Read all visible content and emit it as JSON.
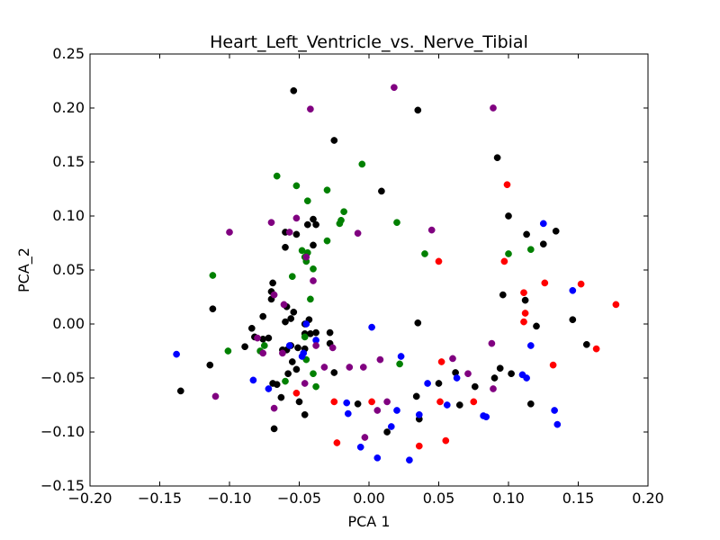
{
  "chart_data": {
    "type": "scatter",
    "title": "Heart_Left_Ventricle_vs._Nerve_Tibial",
    "xlabel": "PCA 1",
    "ylabel": "PCA_2",
    "xlim": [
      -0.2,
      0.2
    ],
    "ylim": [
      -0.15,
      0.25
    ],
    "grid": false,
    "legend": "none",
    "x_ticks": [
      -0.2,
      -0.15,
      -0.1,
      -0.05,
      0.0,
      0.05,
      0.1,
      0.15,
      0.2
    ],
    "x_tick_labels": [
      "−0.20",
      "−0.15",
      "−0.10",
      "−0.05",
      "0.00",
      "0.05",
      "0.10",
      "0.15",
      "0.20"
    ],
    "y_ticks": [
      -0.15,
      -0.1,
      -0.05,
      0.0,
      0.05,
      0.1,
      0.15,
      0.2,
      0.25
    ],
    "y_tick_labels": [
      "−0.15",
      "−0.10",
      "−0.05",
      "0.00",
      "0.05",
      "0.10",
      "0.15",
      "0.20",
      "0.25"
    ],
    "series": [
      {
        "color": "#000000",
        "points": [
          [
            -0.054,
            0.216
          ],
          [
            -0.025,
            0.17
          ],
          [
            0.035,
            0.198
          ],
          [
            0.009,
            0.123
          ],
          [
            0.092,
            0.154
          ],
          [
            0.1,
            0.1
          ],
          [
            0.113,
            0.083
          ],
          [
            0.134,
            0.086
          ],
          [
            0.125,
            0.074
          ],
          [
            -0.06,
            0.085
          ],
          [
            -0.052,
            0.083
          ],
          [
            -0.044,
            0.092
          ],
          [
            -0.04,
            0.097
          ],
          [
            -0.038,
            0.092
          ],
          [
            -0.04,
            0.073
          ],
          [
            -0.06,
            0.071
          ],
          [
            -0.069,
            0.038
          ],
          [
            -0.07,
            0.03
          ],
          [
            -0.07,
            0.023
          ],
          [
            -0.059,
            0.016
          ],
          [
            -0.06,
            0.002
          ],
          [
            -0.056,
            0.005
          ],
          [
            -0.054,
            0.011
          ],
          [
            -0.046,
            0.0
          ],
          [
            -0.043,
            0.004
          ],
          [
            -0.076,
            0.007
          ],
          [
            -0.084,
            -0.004
          ],
          [
            -0.082,
            -0.012
          ],
          [
            -0.076,
            -0.014
          ],
          [
            -0.072,
            -0.013
          ],
          [
            -0.089,
            -0.021
          ],
          [
            -0.062,
            -0.024
          ],
          [
            -0.059,
            -0.024
          ],
          [
            -0.056,
            -0.02
          ],
          [
            -0.051,
            -0.022
          ],
          [
            -0.046,
            -0.009
          ],
          [
            -0.042,
            -0.009
          ],
          [
            -0.038,
            -0.008
          ],
          [
            -0.046,
            -0.023
          ],
          [
            -0.055,
            -0.035
          ],
          [
            -0.052,
            -0.042
          ],
          [
            -0.058,
            -0.046
          ],
          [
            -0.069,
            -0.055
          ],
          [
            -0.066,
            -0.056
          ],
          [
            -0.063,
            -0.068
          ],
          [
            -0.05,
            -0.072
          ],
          [
            -0.046,
            -0.084
          ],
          [
            -0.068,
            -0.097
          ],
          [
            -0.135,
            -0.062
          ],
          [
            -0.114,
            -0.038
          ],
          [
            -0.112,
            0.014
          ],
          [
            -0.028,
            -0.008
          ],
          [
            -0.028,
            -0.018
          ],
          [
            -0.025,
            -0.045
          ],
          [
            -0.008,
            -0.074
          ],
          [
            0.013,
            -0.1
          ],
          [
            0.034,
            -0.067
          ],
          [
            0.036,
            -0.088
          ],
          [
            0.035,
            0.001
          ],
          [
            0.05,
            -0.055
          ],
          [
            0.062,
            -0.045
          ],
          [
            0.065,
            -0.075
          ],
          [
            0.076,
            -0.058
          ],
          [
            0.09,
            -0.05
          ],
          [
            0.094,
            -0.041
          ],
          [
            0.102,
            -0.046
          ],
          [
            0.096,
            0.027
          ],
          [
            0.112,
            0.022
          ],
          [
            0.12,
            -0.002
          ],
          [
            0.146,
            0.004
          ],
          [
            0.156,
            -0.019
          ],
          [
            0.116,
            -0.074
          ]
        ]
      },
      {
        "color": "#008000",
        "points": [
          [
            -0.066,
            0.137
          ],
          [
            -0.052,
            0.128
          ],
          [
            -0.03,
            0.124
          ],
          [
            -0.005,
            0.148
          ],
          [
            -0.044,
            0.114
          ],
          [
            -0.018,
            0.104
          ],
          [
            -0.02,
            0.096
          ],
          [
            -0.021,
            0.093
          ],
          [
            0.02,
            0.094
          ],
          [
            -0.048,
            0.068
          ],
          [
            -0.046,
            0.062
          ],
          [
            -0.044,
            0.066
          ],
          [
            -0.045,
            0.058
          ],
          [
            -0.03,
            0.077
          ],
          [
            -0.04,
            0.051
          ],
          [
            -0.055,
            0.044
          ],
          [
            0.04,
            0.065
          ],
          [
            0.1,
            0.065
          ],
          [
            0.116,
            0.069
          ],
          [
            -0.112,
            0.045
          ],
          [
            -0.042,
            0.023
          ],
          [
            -0.101,
            -0.025
          ],
          [
            -0.078,
            -0.025
          ],
          [
            -0.04,
            -0.046
          ],
          [
            -0.06,
            -0.053
          ],
          [
            -0.038,
            -0.058
          ],
          [
            -0.045,
            -0.033
          ],
          [
            0.022,
            -0.037
          ],
          [
            -0.046,
            -0.012
          ],
          [
            -0.075,
            -0.02
          ]
        ]
      },
      {
        "color": "#0000ff",
        "points": [
          [
            -0.138,
            -0.028
          ],
          [
            -0.083,
            -0.052
          ],
          [
            -0.072,
            -0.06
          ],
          [
            -0.057,
            -0.02
          ],
          [
            -0.048,
            -0.03
          ],
          [
            -0.045,
            0.0
          ],
          [
            -0.038,
            -0.015
          ],
          [
            -0.047,
            -0.027
          ],
          [
            -0.016,
            -0.073
          ],
          [
            -0.015,
            -0.083
          ],
          [
            -0.006,
            -0.114
          ],
          [
            0.002,
            -0.003
          ],
          [
            0.006,
            -0.124
          ],
          [
            0.016,
            -0.095
          ],
          [
            0.02,
            -0.08
          ],
          [
            0.023,
            -0.03
          ],
          [
            0.029,
            -0.126
          ],
          [
            0.036,
            -0.084
          ],
          [
            0.042,
            -0.055
          ],
          [
            0.056,
            -0.075
          ],
          [
            0.063,
            -0.05
          ],
          [
            0.082,
            -0.085
          ],
          [
            0.084,
            -0.086
          ],
          [
            0.11,
            -0.047
          ],
          [
            0.113,
            -0.05
          ],
          [
            0.116,
            -0.02
          ],
          [
            0.125,
            0.093
          ],
          [
            0.133,
            -0.08
          ],
          [
            0.135,
            -0.093
          ],
          [
            0.146,
            0.031
          ]
        ]
      },
      {
        "color": "#800080",
        "points": [
          [
            0.018,
            0.219
          ],
          [
            -0.042,
            0.199
          ],
          [
            0.089,
            0.2
          ],
          [
            -0.052,
            0.098
          ],
          [
            -0.057,
            0.085
          ],
          [
            -0.07,
            0.094
          ],
          [
            -0.1,
            0.085
          ],
          [
            -0.008,
            0.084
          ],
          [
            0.045,
            0.087
          ],
          [
            -0.045,
            0.062
          ],
          [
            -0.04,
            0.04
          ],
          [
            -0.061,
            0.018
          ],
          [
            -0.068,
            0.027
          ],
          [
            -0.08,
            -0.013
          ],
          [
            -0.076,
            -0.027
          ],
          [
            -0.038,
            -0.02
          ],
          [
            -0.026,
            -0.022
          ],
          [
            -0.062,
            -0.027
          ],
          [
            -0.032,
            -0.04
          ],
          [
            -0.014,
            -0.04
          ],
          [
            -0.004,
            -0.04
          ],
          [
            0.008,
            -0.033
          ],
          [
            0.06,
            -0.032
          ],
          [
            0.071,
            -0.046
          ],
          [
            0.088,
            -0.018
          ],
          [
            0.089,
            -0.06
          ],
          [
            -0.11,
            -0.067
          ],
          [
            -0.068,
            -0.078
          ],
          [
            -0.046,
            -0.055
          ],
          [
            0.006,
            -0.08
          ],
          [
            0.013,
            -0.072
          ],
          [
            -0.003,
            -0.105
          ]
        ]
      },
      {
        "color": "#ff0000",
        "points": [
          [
            0.099,
            0.129
          ],
          [
            0.097,
            0.058
          ],
          [
            0.05,
            0.058
          ],
          [
            0.111,
            0.029
          ],
          [
            0.126,
            0.038
          ],
          [
            0.152,
            0.037
          ],
          [
            0.177,
            0.018
          ],
          [
            0.112,
            0.01
          ],
          [
            0.111,
            0.002
          ],
          [
            0.163,
            -0.023
          ],
          [
            0.132,
            -0.038
          ],
          [
            0.052,
            -0.035
          ],
          [
            0.051,
            -0.072
          ],
          [
            0.075,
            -0.072
          ],
          [
            0.002,
            -0.072
          ],
          [
            -0.052,
            -0.064
          ],
          [
            -0.025,
            -0.072
          ],
          [
            -0.023,
            -0.11
          ],
          [
            0.036,
            -0.113
          ],
          [
            0.055,
            -0.108
          ]
        ]
      }
    ]
  }
}
